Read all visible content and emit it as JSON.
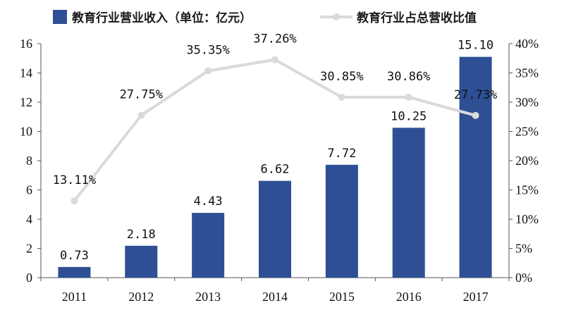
{
  "chart_data": {
    "type": "bar",
    "categories": [
      "2011",
      "2012",
      "2013",
      "2014",
      "2015",
      "2016",
      "2017"
    ],
    "series": [
      {
        "name": "教育行业营业收入（单位：亿元）",
        "type": "bar",
        "axis": "left",
        "values": [
          0.73,
          2.18,
          4.43,
          6.62,
          7.72,
          10.25,
          15.1
        ],
        "labels": [
          "0.73",
          "2.18",
          "4.43",
          "6.62",
          "7.72",
          "10.25",
          "15.10"
        ]
      },
      {
        "name": "教育行业占总营收比值",
        "type": "line",
        "axis": "right",
        "values": [
          13.11,
          27.75,
          35.35,
          37.26,
          30.85,
          30.86,
          27.73
        ],
        "labels": [
          "13.11%",
          "27.75%",
          "35.35%",
          "37.26%",
          "30.85%",
          "30.86%",
          "27.73%"
        ]
      }
    ],
    "left_axis": {
      "ylim": [
        0,
        16
      ],
      "ticks": [
        "0",
        "2",
        "4",
        "6",
        "8",
        "10",
        "12",
        "14",
        "16"
      ]
    },
    "right_axis": {
      "ylim": [
        0,
        40
      ],
      "ticks": [
        "0%",
        "5%",
        "10%",
        "15%",
        "20%",
        "25%",
        "30%",
        "35%",
        "40%"
      ]
    },
    "legend_position": "top",
    "grid": false,
    "colors": {
      "bar": "#2e4f94",
      "line": "#dadada",
      "axis": "#555555"
    }
  }
}
